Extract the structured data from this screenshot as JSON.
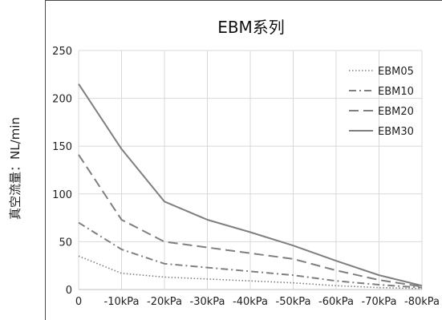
{
  "chart_data": {
    "type": "line",
    "title": "EBM系列",
    "xlabel": "",
    "ylabel": "真空流量：NL/min",
    "categories": [
      "0",
      "-10kPa",
      "-20kPa",
      "-30kPa",
      "-40kPa",
      "-50kPa",
      "-60kPa",
      "-70kPa",
      "-80kPa"
    ],
    "ylim": [
      0,
      250
    ],
    "yticks": [
      0,
      50,
      100,
      150,
      200,
      250
    ],
    "grid": true,
    "legend_position": "top-right",
    "series": [
      {
        "name": "EBM05",
        "style": "dotted",
        "values": [
          35,
          17,
          13,
          11,
          9,
          7,
          4,
          2,
          1
        ]
      },
      {
        "name": "EBM10",
        "style": "dashdot",
        "values": [
          70,
          42,
          27,
          23,
          19,
          15,
          9,
          5,
          2
        ]
      },
      {
        "name": "EBM20",
        "style": "dashed",
        "values": [
          141,
          73,
          50,
          44,
          38,
          32,
          20,
          10,
          3
        ]
      },
      {
        "name": "EBM30",
        "style": "solid",
        "values": [
          215,
          147,
          92,
          73,
          60,
          46,
          30,
          15,
          4
        ]
      }
    ],
    "colors": {
      "line": "#7f7f7f",
      "grid": "#d9d9d9",
      "text": "#222222"
    }
  }
}
